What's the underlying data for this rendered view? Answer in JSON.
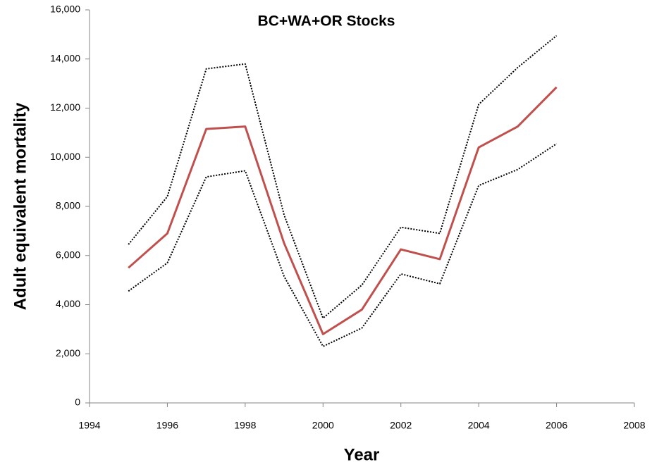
{
  "chart_data": {
    "type": "line",
    "title": "BC+WA+OR Stocks",
    "x_label": "Year",
    "y_label": "Adult equivalent mortality",
    "x": [
      1995,
      1996,
      1997,
      1998,
      1999,
      2000,
      2001,
      2002,
      2003,
      2004,
      2005,
      2006
    ],
    "series": [
      {
        "color": "#000000",
        "dash": "dotted",
        "values": [
          6450,
          8400,
          13600,
          13800,
          7650,
          3450,
          4800,
          7150,
          6900,
          12150,
          13650,
          14950
        ]
      },
      {
        "color": "#000000",
        "dash": "dotted",
        "values": [
          4550,
          5700,
          9200,
          9450,
          5150,
          2300,
          3050,
          5250,
          4850,
          8850,
          9500,
          10550
        ]
      },
      {
        "color": "#c0504d",
        "dash": "solid",
        "values": [
          5500,
          6900,
          11150,
          11250,
          6500,
          2800,
          3800,
          6250,
          5850,
          10400,
          11250,
          12850
        ]
      }
    ],
    "xlim": [
      1994,
      2008
    ],
    "xticks": [
      1994,
      1996,
      1998,
      2000,
      2002,
      2004,
      2006,
      2008
    ],
    "ylim": [
      0,
      16000
    ],
    "yticks": [
      0,
      {
        "value": 2000,
        "label": "2,000"
      },
      {
        "value": 4000,
        "label": "4,000"
      },
      {
        "value": 6000,
        "label": "6,000"
      },
      {
        "value": 8000,
        "label": "8,000"
      },
      {
        "value": 10000,
        "label": "10,000"
      },
      {
        "value": 12000,
        "label": "12,000"
      },
      {
        "value": 14000,
        "label": "14,000"
      },
      {
        "value": 16000,
        "label": "16,000"
      }
    ],
    "grid": false
  }
}
